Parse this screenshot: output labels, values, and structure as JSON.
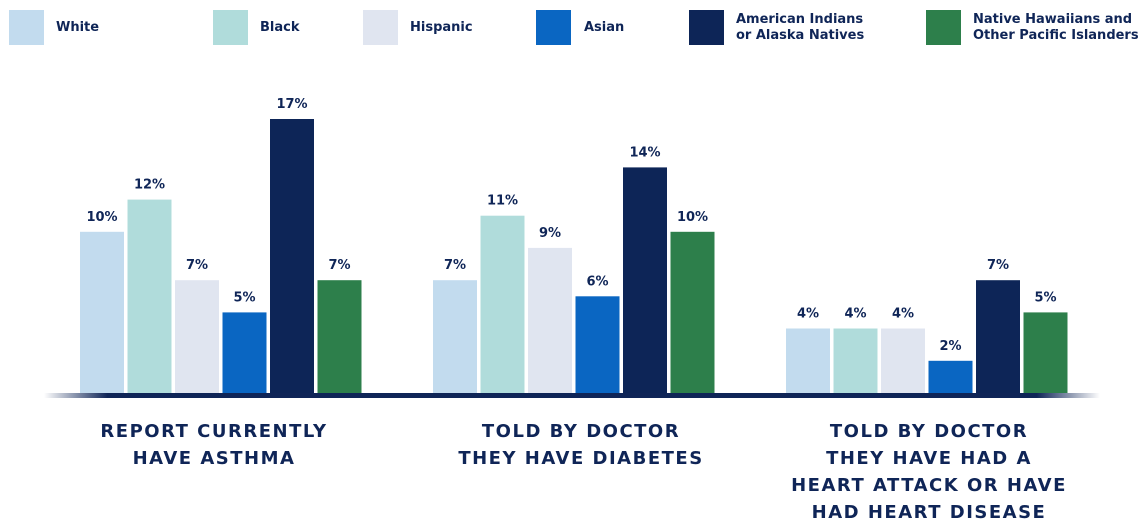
{
  "chart_data": {
    "type": "bar",
    "categories": [
      "REPORT CURRENTLY\nHAVE ASTHMA",
      "TOLD BY DOCTOR\nTHEY HAVE DIABETES",
      "TOLD BY DOCTOR\nTHEY HAVE HAD A\nHEART ATTACK OR HAVE\nHAD HEART DISEASE"
    ],
    "series": [
      {
        "name": "White",
        "color": "#c2dbee",
        "values": [
          10,
          7,
          4
        ],
        "labels": [
          "10%",
          "7%",
          "4%"
        ]
      },
      {
        "name": "Black",
        "color": "#b0dcdb",
        "values": [
          12,
          11,
          4
        ],
        "labels": [
          "12%",
          "11%",
          "4%"
        ]
      },
      {
        "name": "Hispanic",
        "color": "#e0e5f0",
        "values": [
          7,
          9,
          4
        ],
        "labels": [
          "7%",
          "9%",
          "4%"
        ]
      },
      {
        "name": "Asian",
        "color": "#0a66c2",
        "values": [
          5,
          6,
          2
        ],
        "labels": [
          "5%",
          "6%",
          "2%"
        ]
      },
      {
        "name": "American Indians\nor Alaska Natives",
        "color": "#0d2557",
        "values": [
          17,
          14,
          7
        ],
        "labels": [
          "17%",
          "14%",
          "7%"
        ]
      },
      {
        "name": "Native Hawaiians and\nOther Pacific Islanders",
        "color": "#2d7f4b",
        "values": [
          7,
          10,
          5
        ],
        "labels": [
          "7%",
          "10%",
          "5%"
        ]
      }
    ],
    "ylim": [
      0,
      17
    ],
    "legend": "top",
    "grid": false
  }
}
